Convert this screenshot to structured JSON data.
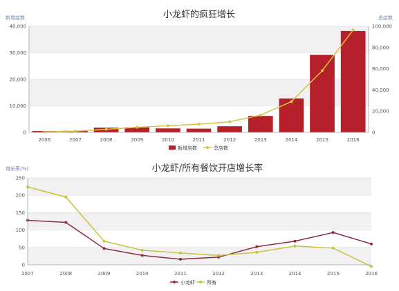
{
  "chart_data": [
    {
      "type": "bar",
      "title": "小龙虾的疯狂增长",
      "ylabel_left": "新增店数",
      "ylabel_right": "总店数",
      "categories": [
        "2006",
        "2007",
        "2008",
        "2009",
        "2010",
        "2011",
        "2012",
        "2013",
        "2014",
        "2015",
        "2016"
      ],
      "ylim_left": [
        0,
        40000
      ],
      "ylim_right": [
        0,
        100000
      ],
      "yticks_left": [
        "0",
        "10,000",
        "20,000",
        "30,000",
        "40,000"
      ],
      "yticks_right": [
        "0",
        "20,000",
        "40,000",
        "60,000",
        "80,000",
        "100,000"
      ],
      "grid": true,
      "legend_position": "bottom",
      "colors": {
        "bar": "#b5202a",
        "line": "#d9c33a"
      },
      "series": [
        {
          "name": "新增店数",
          "kind": "bar",
          "axis": "left",
          "values": [
            500,
            600,
            1800,
            1900,
            1500,
            1400,
            2300,
            6200,
            12800,
            29200,
            38200
          ]
        },
        {
          "name": "总店数",
          "kind": "line",
          "axis": "right",
          "values": [
            500,
            1100,
            2900,
            4800,
            6300,
            7700,
            10000,
            16200,
            29000,
            58200,
            96400
          ]
        }
      ]
    },
    {
      "type": "line",
      "title": "小龙虾/所有餐饮开店增长率",
      "ylabel": "增长率(%)",
      "categories": [
        "2007",
        "2008",
        "2009",
        "2010",
        "2011",
        "2012",
        "2013",
        "2014",
        "2015",
        "2016"
      ],
      "ylim": [
        0,
        250
      ],
      "yticks": [
        "0",
        "50",
        "100",
        "150",
        "200",
        "250"
      ],
      "grid": true,
      "legend_position": "bottom",
      "colors": {
        "a": "#8b2b3e",
        "b": "#c9c33a"
      },
      "series": [
        {
          "name": "小龙虾",
          "values": [
            128,
            122,
            47,
            27,
            16,
            22,
            52,
            68,
            93,
            60
          ]
        },
        {
          "name": "所有",
          "values": [
            224,
            195,
            68,
            42,
            34,
            27,
            36,
            54,
            48,
            -5
          ]
        }
      ]
    }
  ]
}
